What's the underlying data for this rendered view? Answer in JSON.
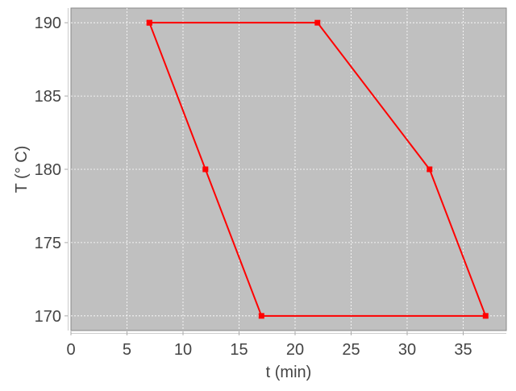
{
  "chart_data": {
    "type": "line",
    "title": "",
    "xlabel": "t (min)",
    "ylabel": "T (° C)",
    "xlim": [
      0,
      38.85
    ],
    "ylim": [
      169,
      191
    ],
    "xticks": [
      0,
      5,
      10,
      15,
      20,
      25,
      30,
      35
    ],
    "yticks": [
      170,
      175,
      180,
      185,
      190
    ],
    "grid": true,
    "legend": "none",
    "series": [
      {
        "x": [
          7,
          22,
          32,
          37,
          17,
          12,
          7
        ],
        "y": [
          190,
          190,
          180,
          170,
          170,
          180,
          190
        ],
        "color": "#ff0000",
        "marker": "square"
      }
    ],
    "colors": {
      "plot_background": "#c0c0c0",
      "grid": "#ffffff",
      "series": "#ff0000"
    }
  }
}
